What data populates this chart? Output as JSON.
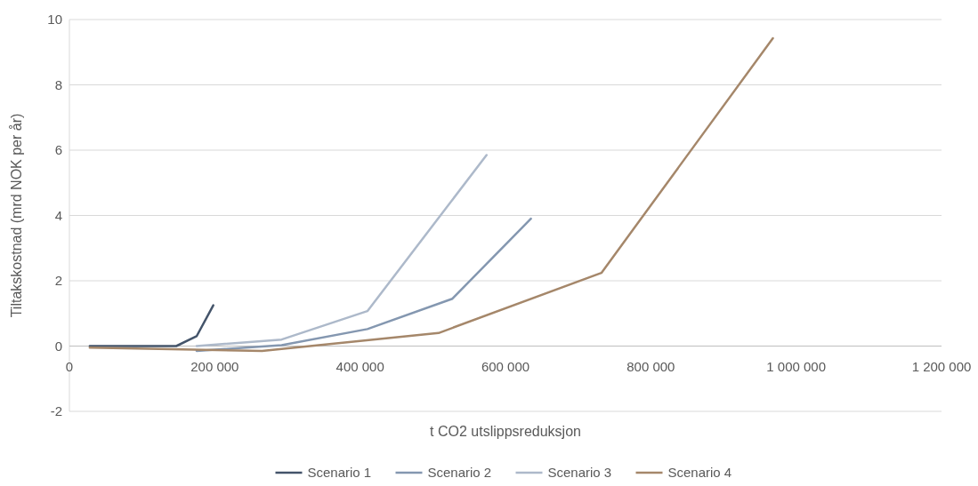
{
  "chart_data": {
    "type": "line",
    "xlabel": "t CO2 utslippsreduksjon",
    "ylabel": "Tiltakskostnad (mrd NOK per år)",
    "xlim": [
      0,
      1200000
    ],
    "xticks": [
      {
        "value": 0,
        "label": "0"
      },
      {
        "value": 200000,
        "label": "200 000"
      },
      {
        "value": 400000,
        "label": "400 000"
      },
      {
        "value": 600000,
        "label": "600 000"
      },
      {
        "value": 800000,
        "label": "800 000"
      },
      {
        "value": 1000000,
        "label": "1 000 000"
      },
      {
        "value": 1200000,
        "label": "1 200 000"
      }
    ],
    "ylim": [
      -2,
      10
    ],
    "yticks": [
      -2,
      0,
      2,
      4,
      6,
      8,
      10
    ],
    "grid": "y",
    "legend": "bottom",
    "marker": "none",
    "line_style": "solid",
    "series": [
      {
        "name": "Scenario 1",
        "color": "#44546a",
        "x": [
          28000,
          147000,
          175000,
          198000
        ],
        "values": [
          0,
          0,
          0.3,
          1.25
        ]
      },
      {
        "name": "Scenario 2",
        "color": "#8497b0",
        "x": [
          175000,
          292000,
          410000,
          527000,
          635000
        ],
        "values": [
          -0.15,
          0.03,
          0.52,
          1.45,
          3.9
        ]
      },
      {
        "name": "Scenario 3",
        "color": "#adb9ca",
        "x": [
          175000,
          292000,
          410000,
          574000
        ],
        "values": [
          0,
          0.2,
          1.07,
          5.85
        ]
      },
      {
        "name": "Scenario 4",
        "color": "#a5876a",
        "x": [
          28000,
          265000,
          508000,
          732000,
          968000
        ],
        "values": [
          -0.05,
          -0.15,
          0.4,
          2.24,
          9.43
        ]
      }
    ]
  }
}
